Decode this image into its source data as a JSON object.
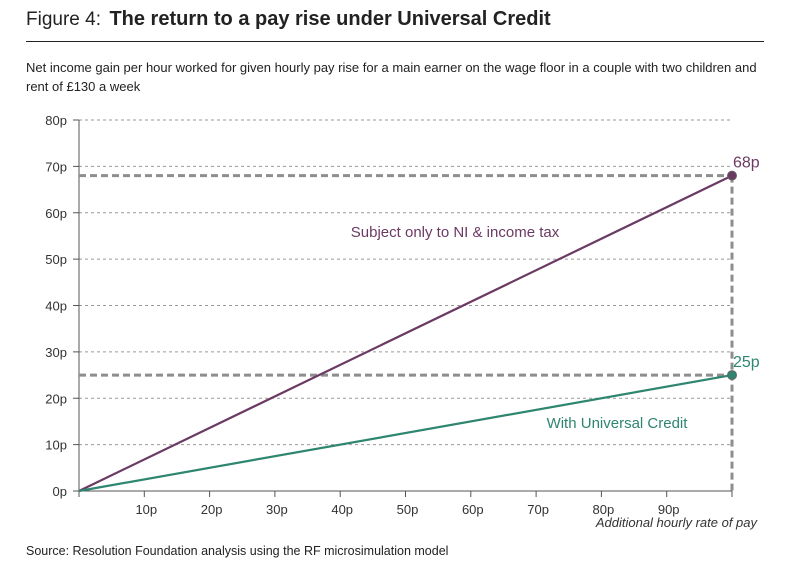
{
  "figure": {
    "label": "Figure 4:",
    "title": "The return to a pay rise under Universal Credit",
    "subtitle": "Net income gain per hour worked for given hourly pay rise for a main earner on the wage floor in a couple with two children and rent of £130 a week",
    "source": "Source: Resolution Foundation analysis using the RF microsimulation model"
  },
  "colors": {
    "purple": "#6b3a63",
    "green": "#2e8570",
    "grid": "#9a9a9a",
    "guide": "#8e8e8e",
    "axis": "#555555"
  },
  "chart_data": {
    "type": "line",
    "xlabel": "Additional hourly rate of pay",
    "ylabel": "",
    "xlim": [
      0,
      100
    ],
    "ylim": [
      0,
      80
    ],
    "x_ticks": [
      10,
      20,
      30,
      40,
      50,
      60,
      70,
      80,
      90
    ],
    "x_tick_labels": [
      "10p",
      "20p",
      "30p",
      "40p",
      "50p",
      "60p",
      "70p",
      "80p",
      "90p"
    ],
    "y_ticks": [
      0,
      10,
      20,
      30,
      40,
      50,
      60,
      70,
      80
    ],
    "y_tick_labels": [
      "0p",
      "10p",
      "20p",
      "30p",
      "40p",
      "50p",
      "60p",
      "70p",
      "80p"
    ],
    "grid": true,
    "series": [
      {
        "name": "Subject only to NI & income tax",
        "x": [
          0,
          100
        ],
        "y": [
          0,
          68
        ],
        "end_label": "68p"
      },
      {
        "name": "With Universal Credit",
        "x": [
          0,
          100
        ],
        "y": [
          0,
          25
        ],
        "end_label": "25p"
      }
    ]
  }
}
